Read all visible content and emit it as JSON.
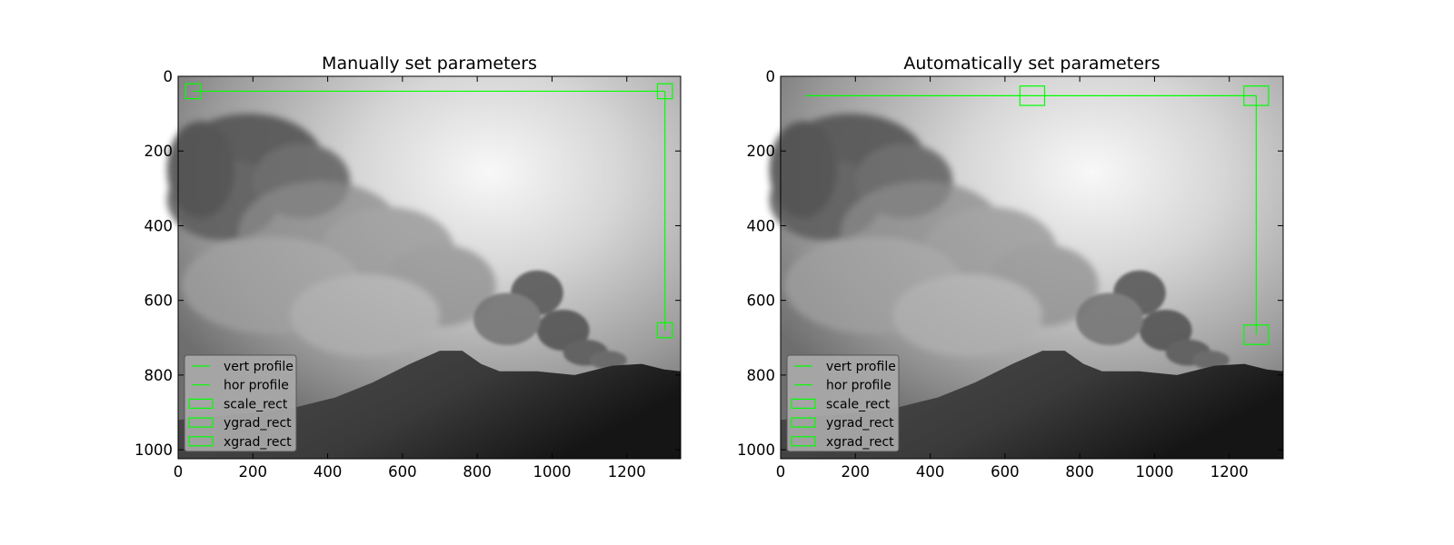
{
  "colors": {
    "overlay": "#00ff00",
    "legend_bg": "#a9a9a9",
    "axis": "#000000"
  },
  "chart_data": [
    {
      "type": "image",
      "title": "Manually set parameters",
      "xlim": [
        0,
        1344
      ],
      "ylim": [
        1024,
        0
      ],
      "xticks": [
        0,
        200,
        400,
        600,
        800,
        1000,
        1200
      ],
      "yticks": [
        0,
        200,
        400,
        600,
        800,
        1000
      ],
      "lines": [
        {
          "name": "vert profile",
          "x": [
            1302,
            1302
          ],
          "y": [
            40,
            680
          ]
        },
        {
          "name": "hor profile",
          "x": [
            40,
            1302
          ],
          "y": [
            40,
            40
          ]
        }
      ],
      "rects": [
        {
          "name": "scale_rect",
          "x0": 20,
          "y0": 20,
          "x1": 60,
          "y1": 60
        },
        {
          "name": "ygrad_rect",
          "x0": 1282,
          "y0": 660,
          "x1": 1322,
          "y1": 700
        },
        {
          "name": "xgrad_rect",
          "x0": 1282,
          "y0": 20,
          "x1": 1322,
          "y1": 60
        }
      ],
      "legend": {
        "placement": "lower-left",
        "entries": [
          "vert profile",
          "hor profile",
          "scale_rect",
          "ygrad_rect",
          "xgrad_rect"
        ]
      }
    },
    {
      "type": "image",
      "title": "Automatically set parameters",
      "xlim": [
        0,
        1344
      ],
      "ylim": [
        1024,
        0
      ],
      "xticks": [
        0,
        200,
        400,
        600,
        800,
        1000,
        1200
      ],
      "yticks": [
        0,
        200,
        400,
        600,
        800,
        1000
      ],
      "lines": [
        {
          "name": "vert profile",
          "x": [
            1272,
            1272
          ],
          "y": [
            52,
            692
          ]
        },
        {
          "name": "hor profile",
          "x": [
            67,
            1272
          ],
          "y": [
            52,
            52
          ]
        }
      ],
      "rects": [
        {
          "name": "scale_rect",
          "x0": 640,
          "y0": 26,
          "x1": 706,
          "y1": 78
        },
        {
          "name": "ygrad_rect",
          "x0": 1239,
          "y0": 666,
          "x1": 1305,
          "y1": 718
        },
        {
          "name": "xgrad_rect",
          "x0": 1239,
          "y0": 26,
          "x1": 1305,
          "y1": 78
        }
      ],
      "legend": {
        "placement": "lower-left",
        "entries": [
          "vert profile",
          "hor profile",
          "scale_rect",
          "ygrad_rect",
          "xgrad_rect"
        ]
      }
    }
  ]
}
